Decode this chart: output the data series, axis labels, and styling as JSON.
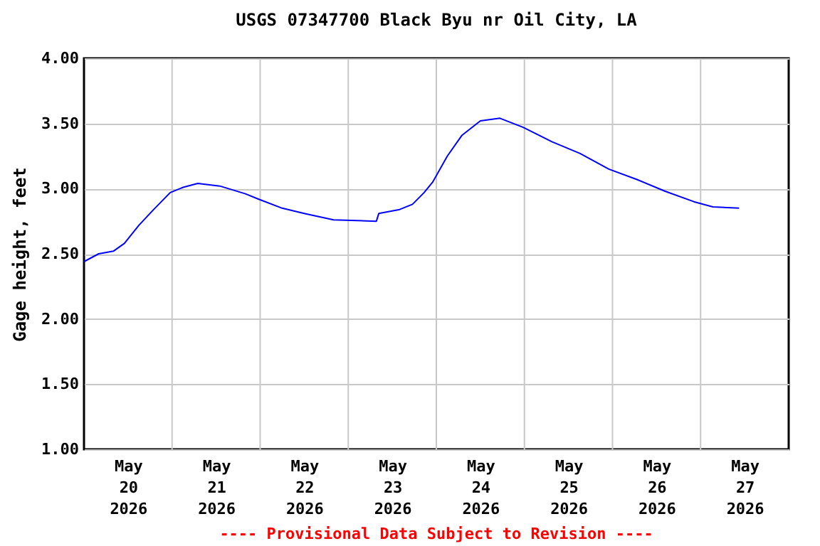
{
  "chart_data": {
    "type": "line",
    "title": "USGS 07347700 Black Byu nr Oil City, LA",
    "ylabel": "Gage height, feet",
    "annotations": [
      "---- Provisional Data Subject to Revision ----"
    ],
    "x": [
      "2026-05-20T00:00",
      "2026-05-20T04:00",
      "2026-05-20T08:00",
      "2026-05-20T11:00",
      "2026-05-20T15:00",
      "2026-05-20T19:00",
      "2026-05-20T23:30",
      "2026-05-21T03:00",
      "2026-05-21T07:00",
      "2026-05-21T13:00",
      "2026-05-21T20:00",
      "2026-05-21T23:30",
      "2026-05-22T06:00",
      "2026-05-22T12:00",
      "2026-05-22T20:00",
      "2026-05-23T07:40",
      "2026-05-23T08:20",
      "2026-05-23T14:00",
      "2026-05-23T17:30",
      "2026-05-23T20:40",
      "2026-05-23T23:00",
      "2026-05-24T03:00",
      "2026-05-24T07:00",
      "2026-05-24T12:00",
      "2026-05-24T17:20",
      "2026-05-24T23:40",
      "2026-05-25T07:30",
      "2026-05-25T15:10",
      "2026-05-25T23:00",
      "2026-05-26T06:40",
      "2026-05-26T14:20",
      "2026-05-26T22:10",
      "2026-05-27T03:20",
      "2026-05-27T10:30"
    ],
    "series": [
      {
        "color": "#0000ff",
        "values": [
          2.44,
          2.5,
          2.52,
          2.58,
          2.72,
          2.84,
          2.97,
          3.01,
          3.04,
          3.02,
          2.96,
          2.92,
          2.85,
          2.81,
          2.76,
          2.75,
          2.81,
          2.84,
          2.88,
          2.97,
          3.05,
          3.25,
          3.41,
          3.52,
          3.54,
          3.47,
          3.36,
          3.27,
          3.15,
          3.07,
          2.98,
          2.9,
          2.86,
          2.85
        ]
      }
    ],
    "xlim": [
      "2026-05-20T00:00",
      "2026-05-28T00:00"
    ],
    "xticks": [
      {
        "value": "2026-05-20T12:00",
        "label": "May 20 2026"
      },
      {
        "value": "2026-05-21T00:00",
        "label": null
      },
      {
        "value": "2026-05-21T12:00",
        "label": "May 21 2026"
      },
      {
        "value": "2026-05-22T00:00",
        "label": null
      },
      {
        "value": "2026-05-22T12:00",
        "label": "May 22 2026"
      },
      {
        "value": "2026-05-23T00:00",
        "label": null
      },
      {
        "value": "2026-05-23T12:00",
        "label": "May 23 2026"
      },
      {
        "value": "2026-05-24T00:00",
        "label": null
      },
      {
        "value": "2026-05-24T12:00",
        "label": "May 24 2026"
      },
      {
        "value": "2026-05-25T00:00",
        "label": null
      },
      {
        "value": "2026-05-25T12:00",
        "label": "May 25 2026"
      },
      {
        "value": "2026-05-26T00:00",
        "label": null
      },
      {
        "value": "2026-05-26T12:00",
        "label": "May 26 2026"
      },
      {
        "value": "2026-05-27T00:00",
        "label": null
      },
      {
        "value": "2026-05-27T12:00",
        "label": "May 27 2026"
      }
    ],
    "ylim": [
      1.0,
      4.0
    ],
    "yticks": [
      {
        "value": 1.0,
        "label": "1.00"
      },
      {
        "value": 1.5,
        "label": "1.50"
      },
      {
        "value": 2.0,
        "label": "2.00"
      },
      {
        "value": 2.5,
        "label": "2.50"
      },
      {
        "value": 3.0,
        "label": "3.00"
      },
      {
        "value": 3.5,
        "label": "3.50"
      },
      {
        "value": 4.0,
        "label": "4.00"
      }
    ],
    "grid": true,
    "marker": "none",
    "line_style": "solid"
  }
}
